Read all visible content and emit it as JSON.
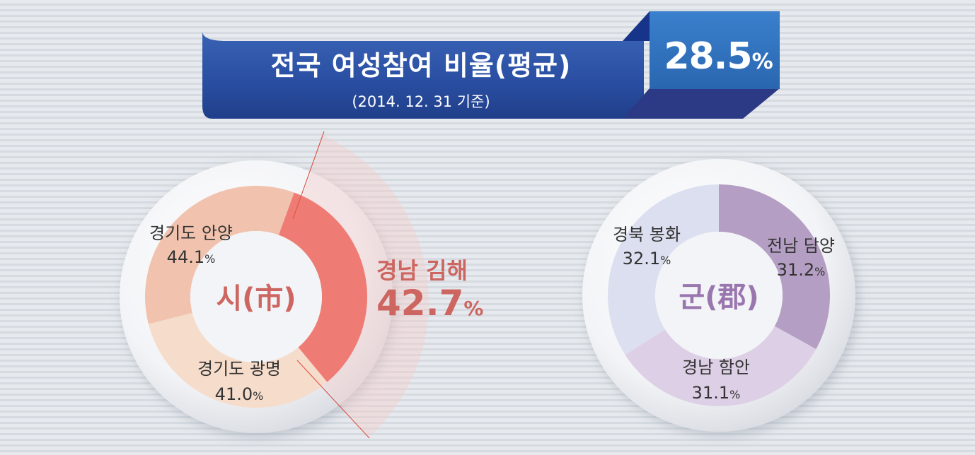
{
  "header": {
    "title": "전국 여성참여 비율(평균)",
    "subtitle": "(2014. 12. 31 기준)",
    "average_value": "28.5",
    "average_unit": "%"
  },
  "chart_data": [
    {
      "type": "pie",
      "title": "시(市)",
      "unit": "%",
      "slices": [
        {
          "label": "경남 김해",
          "value": 42.7,
          "display": "42.7",
          "color": "#ef7c74",
          "highlight": true
        },
        {
          "label": "경기도 광명",
          "value": 41.0,
          "display": "41.0",
          "color": "#f6dccb"
        },
        {
          "label": "경기도 안양",
          "value": 44.1,
          "display": "44.1",
          "color": "#f1c2ad"
        }
      ]
    },
    {
      "type": "pie",
      "title": "군(郡)",
      "unit": "%",
      "slices": [
        {
          "label": "전남 담양",
          "value": 31.2,
          "display": "31.2",
          "color": "#b59ec3"
        },
        {
          "label": "경남 함안",
          "value": 31.1,
          "display": "31.1",
          "color": "#ddd0e6"
        },
        {
          "label": "경북 봉화",
          "value": 32.1,
          "display": "32.1",
          "color": "#dcdff0"
        }
      ]
    }
  ],
  "colors": {
    "banner_blue": "#2a4fa3",
    "badge_blue": "#2f72bf",
    "city_label": "#cd6560",
    "county_label": "#9a76ae",
    "slice_text": "#333333"
  }
}
